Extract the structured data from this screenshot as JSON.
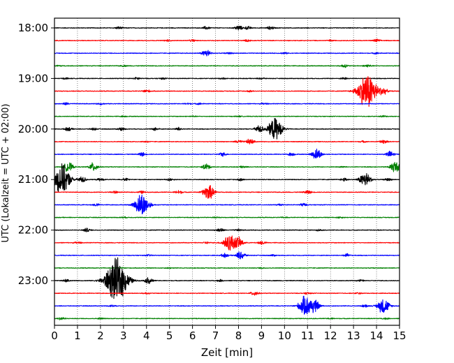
{
  "chart_data": {
    "type": "seismogram-helicorder",
    "xlabel": "Zeit  [min]",
    "ylabel": "UTC (Lokalzeit = UTC + 02:00)",
    "xlim": [
      0,
      15
    ],
    "x_ticks": [
      "0",
      "1",
      "2",
      "3",
      "4",
      "5",
      "6",
      "7",
      "8",
      "9",
      "10",
      "11",
      "12",
      "13",
      "14",
      "15"
    ],
    "y_tick_labels": [
      "18:00",
      "19:00",
      "20:00",
      "21:00",
      "22:00",
      "23:00"
    ],
    "grid": "vertical dotted lines at each minute",
    "colors": [
      "#000000",
      "#ff0000",
      "#0000ff",
      "#008000"
    ],
    "trace_start": "18:00",
    "trace_interval_minutes": 15,
    "trace_count": 24,
    "bursts": [
      [
        [
          2.8,
          0.02
        ],
        [
          6.6,
          0.025
        ],
        [
          8.0,
          0.04
        ],
        [
          8.4,
          0.025
        ],
        [
          9.4,
          0.025
        ]
      ],
      [
        [
          4.9,
          0.015
        ],
        [
          6.0,
          0.015
        ],
        [
          8.4,
          0.015
        ],
        [
          12.0,
          0.01
        ],
        [
          14.0,
          0.025
        ]
      ],
      [
        [
          6.6,
          0.06
        ],
        [
          7.6,
          0.012
        ],
        [
          10.0,
          0.012
        ],
        [
          14.0,
          0.012
        ]
      ],
      [
        [
          0.2,
          0.01
        ],
        [
          3.0,
          0.01
        ],
        [
          12.6,
          0.025
        ],
        [
          13.6,
          0.025
        ]
      ],
      [
        [
          0.5,
          0.012
        ],
        [
          3.6,
          0.02
        ],
        [
          4.7,
          0.012
        ],
        [
          7.3,
          0.012
        ],
        [
          9.0,
          0.015
        ],
        [
          12.6,
          0.015
        ]
      ],
      [
        [
          4.0,
          0.025
        ],
        [
          8.5,
          0.012
        ],
        [
          13.6,
          0.3
        ],
        [
          14.3,
          0.05
        ]
      ],
      [
        [
          0.5,
          0.018
        ],
        [
          2.0,
          0.015
        ],
        [
          5.8,
          0.012
        ],
        [
          6.3,
          0.012
        ],
        [
          9.1,
          0.012
        ]
      ],
      [
        [
          3.0,
          0.008
        ],
        [
          6.0,
          0.008
        ],
        [
          8.0,
          0.008
        ],
        [
          14.3,
          0.012
        ]
      ],
      [
        [
          0.6,
          0.03
        ],
        [
          1.7,
          0.018
        ],
        [
          2.9,
          0.025
        ],
        [
          4.4,
          0.025
        ],
        [
          5.4,
          0.025
        ],
        [
          8.9,
          0.06
        ],
        [
          9.6,
          0.18
        ]
      ],
      [
        [
          4.0,
          0.012
        ],
        [
          8.0,
          0.025
        ],
        [
          8.5,
          0.045
        ],
        [
          13.4,
          0.012
        ],
        [
          14.3,
          0.03
        ]
      ],
      [
        [
          3.8,
          0.03
        ],
        [
          7.3,
          0.03
        ],
        [
          10.3,
          0.025
        ],
        [
          11.4,
          0.09
        ],
        [
          14.6,
          0.05
        ]
      ],
      [
        [
          0.6,
          0.08
        ],
        [
          1.7,
          0.07
        ],
        [
          6.6,
          0.05
        ],
        [
          8.2,
          0.015
        ],
        [
          12.5,
          0.01
        ],
        [
          14.8,
          0.09
        ]
      ],
      [
        [
          0.3,
          0.25
        ],
        [
          1.2,
          0.05
        ],
        [
          2.0,
          0.02
        ],
        [
          3.1,
          0.02
        ],
        [
          5.0,
          0.02
        ],
        [
          8.1,
          0.02
        ],
        [
          12.6,
          0.025
        ],
        [
          13.5,
          0.12
        ],
        [
          14.5,
          0.02
        ]
      ],
      [
        [
          2.6,
          0.02
        ],
        [
          3.8,
          0.02
        ],
        [
          5.4,
          0.03
        ],
        [
          6.7,
          0.12
        ],
        [
          11.0,
          0.03
        ]
      ],
      [
        [
          1.8,
          0.02
        ],
        [
          3.8,
          0.19
        ],
        [
          9.8,
          0.012
        ],
        [
          10.8,
          0.025
        ]
      ],
      [
        [
          3.0,
          0.01
        ],
        [
          7.0,
          0.008
        ],
        [
          10.0,
          0.008
        ],
        [
          12.4,
          0.012
        ]
      ],
      [
        [
          1.4,
          0.03
        ],
        [
          7.2,
          0.03
        ],
        [
          8.0,
          0.015
        ],
        [
          11.5,
          0.012
        ]
      ],
      [
        [
          1.0,
          0.015
        ],
        [
          6.6,
          0.015
        ],
        [
          7.6,
          0.14
        ],
        [
          8.0,
          0.08
        ],
        [
          9.0,
          0.03
        ]
      ],
      [
        [
          4.1,
          0.012
        ],
        [
          7.4,
          0.03
        ],
        [
          8.1,
          0.07
        ],
        [
          9.5,
          0.012
        ],
        [
          12.7,
          0.025
        ]
      ],
      [
        [
          2.9,
          0.008
        ],
        [
          5.0,
          0.008
        ],
        [
          9.0,
          0.008
        ]
      ],
      [
        [
          0.5,
          0.02
        ],
        [
          2.7,
          0.36
        ],
        [
          4.1,
          0.05
        ],
        [
          7.2,
          0.015
        ],
        [
          13.3,
          0.015
        ]
      ],
      [
        [
          4.0,
          0.012
        ],
        [
          8.7,
          0.04
        ],
        [
          11.0,
          0.015
        ],
        [
          13.2,
          0.012
        ]
      ],
      [
        [
          2.5,
          0.015
        ],
        [
          10.9,
          0.16
        ],
        [
          11.3,
          0.1
        ],
        [
          13.5,
          0.02
        ],
        [
          14.3,
          0.13
        ]
      ],
      [
        [
          0.3,
          0.025
        ],
        [
          2.0,
          0.012
        ],
        [
          12.0,
          0.01
        ],
        [
          14.4,
          0.012
        ]
      ]
    ]
  }
}
